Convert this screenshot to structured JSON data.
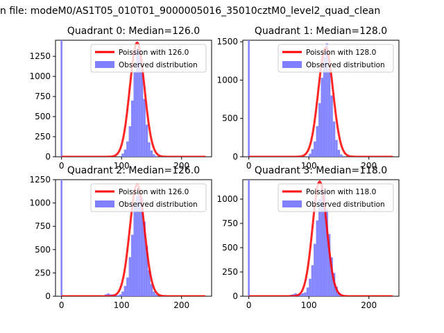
{
  "figure": {
    "suptitle": "n file: modeM0/AS1T05_010T01_9000005016_35010cztM0_level2_quad_clean"
  },
  "colors": {
    "poisson": "#ff0000",
    "observed": "#8080ff",
    "axis": "#000000"
  },
  "chart_data": [
    {
      "type": "bar",
      "title": "Quadrant 0: Median=126.0",
      "median": 126.0,
      "xlim": [
        -10,
        250
      ],
      "ylim": [
        0,
        1450
      ],
      "xticks": [
        0,
        100,
        200
      ],
      "yticks": [
        0,
        250,
        500,
        750,
        1000,
        1250
      ],
      "legend_position": "upper right",
      "series": [
        {
          "name": "Poission with 126.0",
          "kind": "line",
          "curve": "poisson",
          "mean": 126.0,
          "range": [
            0,
            240
          ],
          "peak": 1420
        },
        {
          "name": "Observed distribution",
          "kind": "histogram",
          "spike_at_zero": 1450,
          "x": [
            96,
            100,
            104,
            108,
            112,
            116,
            120,
            124,
            128,
            132,
            136,
            140,
            144,
            148,
            152,
            156
          ],
          "values": [
            10,
            40,
            90,
            190,
            380,
            700,
            1050,
            1340,
            1320,
            1080,
            720,
            400,
            180,
            80,
            30,
            10
          ]
        }
      ]
    },
    {
      "type": "bar",
      "title": "Quadrant 1: Median=128.0",
      "median": 128.0,
      "xlim": [
        -10,
        250
      ],
      "ylim": [
        0,
        1520
      ],
      "xticks": [
        0,
        100,
        200
      ],
      "yticks": [
        0,
        500,
        1000,
        1500
      ],
      "legend_position": "upper right",
      "series": [
        {
          "name": "Poission with 128.0",
          "kind": "line",
          "curve": "poisson",
          "mean": 128.0,
          "range": [
            0,
            240
          ],
          "peak": 1420
        },
        {
          "name": "Observed distribution",
          "kind": "histogram",
          "spike_at_zero": 1520,
          "x": [
            96,
            100,
            104,
            108,
            112,
            116,
            120,
            124,
            128,
            132,
            136,
            140,
            144,
            148,
            152,
            156
          ],
          "values": [
            10,
            40,
            100,
            200,
            400,
            700,
            1030,
            1300,
            1480,
            1150,
            800,
            460,
            220,
            90,
            30,
            10
          ]
        }
      ]
    },
    {
      "type": "bar",
      "title": "Quadrant 2: Median=126.0",
      "median": 126.0,
      "xlim": [
        -10,
        250
      ],
      "ylim": [
        0,
        1250
      ],
      "xticks": [
        0,
        100,
        200
      ],
      "yticks": [
        0,
        250,
        500,
        750,
        1000,
        1250
      ],
      "legend_position": "upper right",
      "series": [
        {
          "name": "Poission with 126.0",
          "kind": "line",
          "curve": "poisson",
          "mean": 126.0,
          "range": [
            0,
            240
          ],
          "peak": 1200
        },
        {
          "name": "Observed distribution",
          "kind": "histogram",
          "spike_at_zero": 1250,
          "x": [
            72,
            76,
            80,
            84,
            88,
            92,
            96,
            100,
            104,
            108,
            112,
            116,
            120,
            124,
            128,
            132,
            136,
            140,
            144,
            148,
            152,
            156
          ],
          "values": [
            20,
            30,
            20,
            20,
            15,
            10,
            20,
            50,
            110,
            200,
            420,
            660,
            960,
            1080,
            1130,
            1060,
            800,
            540,
            280,
            130,
            50,
            20
          ]
        }
      ]
    },
    {
      "type": "bar",
      "title": "Quadrant 3: Median=118.0",
      "median": 118.0,
      "xlim": [
        -10,
        250
      ],
      "ylim": [
        0,
        1200
      ],
      "xticks": [
        0,
        100,
        200
      ],
      "yticks": [
        0,
        250,
        500,
        750,
        1000
      ],
      "legend_position": "upper right",
      "series": [
        {
          "name": "Poission with 118.0",
          "kind": "line",
          "curve": "poisson",
          "mean": 118.0,
          "range": [
            0,
            240
          ],
          "peak": 1180
        },
        {
          "name": "Observed distribution",
          "kind": "histogram",
          "spike_at_zero": 1200,
          "x": [
            68,
            72,
            76,
            80,
            84,
            88,
            92,
            96,
            100,
            104,
            108,
            112,
            116,
            120,
            124,
            128,
            132,
            136,
            140,
            144,
            148,
            152
          ],
          "values": [
            15,
            20,
            30,
            20,
            20,
            30,
            40,
            90,
            180,
            320,
            540,
            780,
            1000,
            1160,
            1080,
            900,
            640,
            400,
            240,
            100,
            40,
            15
          ]
        }
      ]
    }
  ]
}
